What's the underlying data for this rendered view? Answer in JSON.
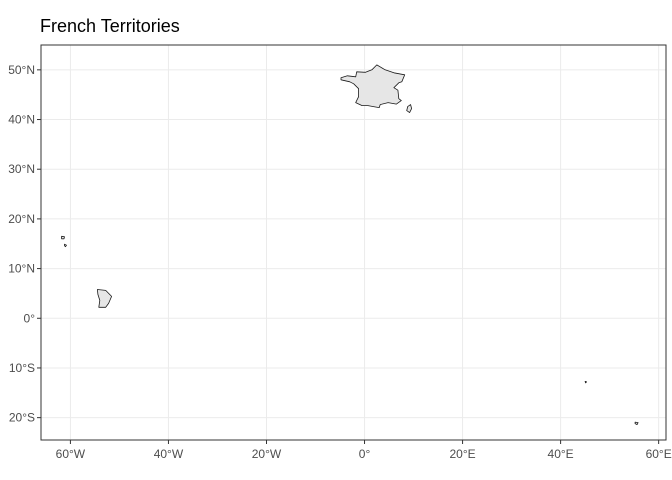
{
  "title": "French Territories",
  "colors": {
    "panel_border": "#333333",
    "grid": "#ebebeb",
    "land_fill": "#e6e6e6",
    "land_stroke": "#1a1a1a",
    "axis_text": "#4d4d4d"
  },
  "axes": {
    "x_range": [
      -66,
      61.5
    ],
    "y_range": [
      -24.5,
      55
    ],
    "x_ticks": [
      {
        "value": -60,
        "label": "60°W"
      },
      {
        "value": -40,
        "label": "40°W"
      },
      {
        "value": -20,
        "label": "20°W"
      },
      {
        "value": 0,
        "label": "0°"
      },
      {
        "value": 20,
        "label": "20°E"
      },
      {
        "value": 40,
        "label": "40°E"
      },
      {
        "value": 60,
        "label": "60°E"
      }
    ],
    "y_ticks": [
      {
        "value": 50,
        "label": "50°N"
      },
      {
        "value": 40,
        "label": "40°N"
      },
      {
        "value": 30,
        "label": "30°N"
      },
      {
        "value": 20,
        "label": "20°N"
      },
      {
        "value": 10,
        "label": "10°N"
      },
      {
        "value": 0,
        "label": "0°"
      },
      {
        "value": -10,
        "label": "10°S"
      },
      {
        "value": -20,
        "label": "20°S"
      }
    ]
  },
  "regions": [
    {
      "name": "Metropolitan France",
      "coords": [
        [
          -4.8,
          48.4
        ],
        [
          -3.5,
          48.8
        ],
        [
          -1.8,
          48.6
        ],
        [
          -1.6,
          49.6
        ],
        [
          0.2,
          49.5
        ],
        [
          1.5,
          50.0
        ],
        [
          2.5,
          51.0
        ],
        [
          4.2,
          50.0
        ],
        [
          6.0,
          49.4
        ],
        [
          8.2,
          49.0
        ],
        [
          7.6,
          47.6
        ],
        [
          7.0,
          47.4
        ],
        [
          6.0,
          46.4
        ],
        [
          6.8,
          45.9
        ],
        [
          7.0,
          44.2
        ],
        [
          7.5,
          43.8
        ],
        [
          6.5,
          43.1
        ],
        [
          4.8,
          43.4
        ],
        [
          3.2,
          43.0
        ],
        [
          3.0,
          42.4
        ],
        [
          1.8,
          42.6
        ],
        [
          0.7,
          42.8
        ],
        [
          -0.5,
          42.8
        ],
        [
          -1.8,
          43.4
        ],
        [
          -1.2,
          44.6
        ],
        [
          -1.2,
          46.2
        ],
        [
          -2.2,
          47.2
        ],
        [
          -3.0,
          47.6
        ],
        [
          -4.8,
          48.0
        ]
      ]
    },
    {
      "name": "Corsica",
      "coords": [
        [
          9.4,
          43.0
        ],
        [
          9.6,
          42.2
        ],
        [
          9.2,
          41.4
        ],
        [
          8.6,
          41.8
        ],
        [
          8.8,
          42.6
        ]
      ]
    },
    {
      "name": "Guadeloupe",
      "coords": [
        [
          -61.8,
          16.5
        ],
        [
          -61.2,
          16.4
        ],
        [
          -61.3,
          16.0
        ],
        [
          -61.8,
          16.0
        ]
      ]
    },
    {
      "name": "Martinique",
      "coords": [
        [
          -61.2,
          14.9
        ],
        [
          -60.8,
          14.7
        ],
        [
          -61.0,
          14.4
        ],
        [
          -61.2,
          14.6
        ]
      ]
    },
    {
      "name": "French Guiana",
      "coords": [
        [
          -54.5,
          5.8
        ],
        [
          -52.8,
          5.6
        ],
        [
          -51.6,
          4.4
        ],
        [
          -52.2,
          3.0
        ],
        [
          -52.8,
          2.2
        ],
        [
          -54.2,
          2.2
        ],
        [
          -54.0,
          3.6
        ],
        [
          -54.4,
          4.8
        ]
      ]
    },
    {
      "name": "Mayotte",
      "coords": [
        [
          45.0,
          -12.7
        ],
        [
          45.3,
          -12.8
        ],
        [
          45.1,
          -13.0
        ]
      ]
    },
    {
      "name": "Réunion",
      "coords": [
        [
          55.2,
          -20.9
        ],
        [
          55.8,
          -21.0
        ],
        [
          55.6,
          -21.4
        ],
        [
          55.2,
          -21.2
        ]
      ]
    }
  ]
}
